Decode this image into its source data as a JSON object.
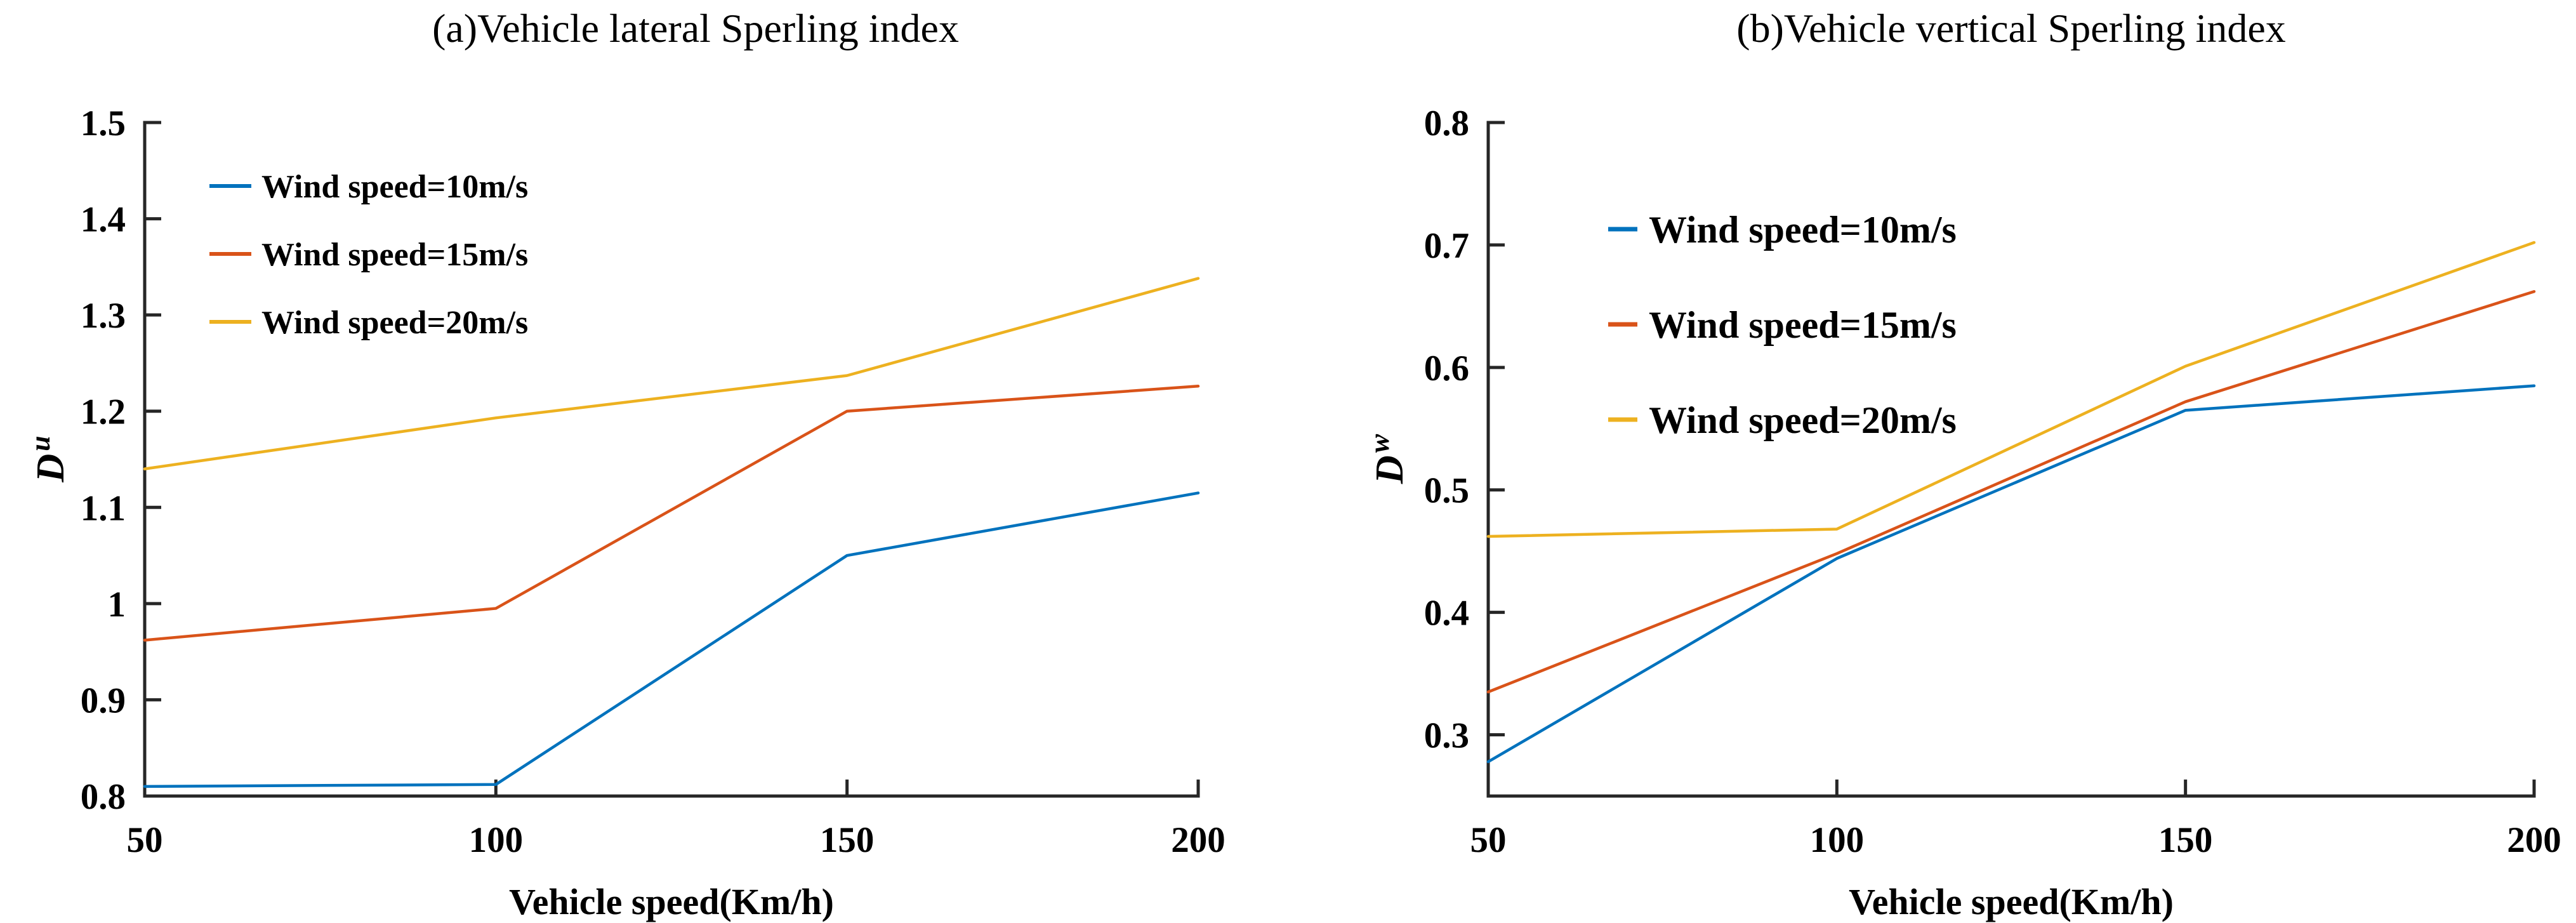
{
  "figure": {
    "background": "#ffffff",
    "axis_color": "#262626",
    "text_color": "#000000"
  },
  "chart_data": [
    {
      "type": "line",
      "panel": "a",
      "title": "(a)Vehicle lateral Sperling index",
      "xlabel": "Vehicle speed(Km/h)",
      "ylabel": "D",
      "ylabel_sup": "u",
      "xlim": [
        50,
        200
      ],
      "ylim": [
        0.8,
        1.5
      ],
      "grid": false,
      "legend_position": "upper-left-inside",
      "x": [
        50,
        100,
        150,
        200
      ],
      "xtick_labels": [
        "50",
        "100",
        "150",
        "200"
      ],
      "yticks": [
        0.8,
        0.9,
        1.0,
        1.1,
        1.2,
        1.3,
        1.4,
        1.5
      ],
      "ytick_labels": [
        "0.8",
        "0.9",
        "1",
        "1.1",
        "1.2",
        "1.3",
        "1.4",
        "1.5"
      ],
      "series": [
        {
          "name": "Wind speed=10m/s",
          "color": "#0072BD",
          "values": [
            0.81,
            0.812,
            1.05,
            1.115
          ]
        },
        {
          "name": "Wind speed=15m/s",
          "color": "#D95319",
          "values": [
            0.962,
            0.995,
            1.2,
            1.226
          ]
        },
        {
          "name": "Wind speed=20m/s",
          "color": "#EDB120",
          "values": [
            1.14,
            1.193,
            1.237,
            1.338
          ]
        }
      ]
    },
    {
      "type": "line",
      "panel": "b",
      "title": "(b)Vehicle vertical Sperling index",
      "xlabel": "Vehicle speed(Km/h)",
      "ylabel": "D",
      "ylabel_sup": "w",
      "xlim": [
        50,
        200
      ],
      "ylim": [
        0.25,
        0.8
      ],
      "grid": false,
      "legend_position": "upper-left-inside",
      "x": [
        50,
        100,
        150,
        200
      ],
      "xtick_labels": [
        "50",
        "100",
        "150",
        "200"
      ],
      "yticks": [
        0.3,
        0.4,
        0.5,
        0.6,
        0.7,
        0.8
      ],
      "ytick_labels": [
        "0.3",
        "0.4",
        "0.5",
        "0.6",
        "0.7",
        "0.8"
      ],
      "series": [
        {
          "name": "Wind speed=10m/s",
          "color": "#0072BD",
          "values": [
            0.278,
            0.444,
            0.565,
            0.585
          ]
        },
        {
          "name": "Wind speed=15m/s",
          "color": "#D95319",
          "values": [
            0.335,
            0.448,
            0.572,
            0.662
          ]
        },
        {
          "name": "Wind speed=20m/s",
          "color": "#EDB120",
          "values": [
            0.462,
            0.468,
            0.601,
            0.702
          ]
        }
      ]
    }
  ]
}
